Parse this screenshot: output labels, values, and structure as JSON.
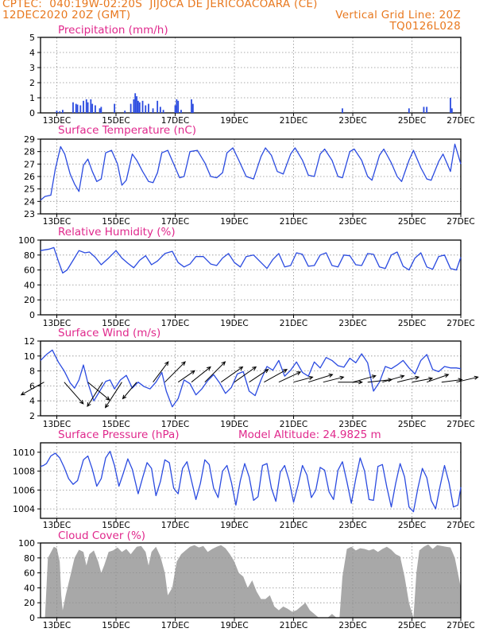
{
  "header": {
    "line1": "CPTEC:  040:19W-02:20S  JIJOCA DE JERICOACOARA (CE)",
    "line2_left": "12DEC2020 20Z (GMT)",
    "line2_right": "Vertical Grid Line: 20Z",
    "line3_right": "TQ0126L028"
  },
  "colors": {
    "header": "#e8781e",
    "title": "#e0288c",
    "series": "#2b4be0",
    "cloud": "#a8a8a8",
    "grid": "#909090",
    "wind_arrow": "#000000"
  },
  "x_ticks": [
    "13DEC",
    "15DEC",
    "17DEC",
    "19DEC",
    "21DEC",
    "23DEC",
    "25DEC",
    "27DEC"
  ],
  "chart_data": [
    {
      "id": "precip",
      "type": "bar",
      "title": "Precipitation (mm/h)",
      "ylim": [
        0,
        5
      ],
      "yticks": [
        "0",
        "1",
        "2",
        "3",
        "4",
        "5"
      ],
      "t_range": [
        0,
        14.25
      ],
      "grid": true,
      "bars": [
        [
          0.55,
          0.15
        ],
        [
          0.65,
          0.1
        ],
        [
          0.75,
          0.2
        ],
        [
          1.1,
          0.7
        ],
        [
          1.2,
          0.6
        ],
        [
          1.25,
          0.55
        ],
        [
          1.35,
          0.5
        ],
        [
          1.45,
          0.8
        ],
        [
          1.55,
          0.9
        ],
        [
          1.6,
          0.7
        ],
        [
          1.7,
          0.9
        ],
        [
          1.75,
          0.6
        ],
        [
          1.85,
          0.5
        ],
        [
          2.0,
          0.3
        ],
        [
          2.05,
          0.4
        ],
        [
          2.5,
          0.6
        ],
        [
          2.85,
          0.15
        ],
        [
          3.05,
          0.6
        ],
        [
          3.15,
          0.9
        ],
        [
          3.2,
          1.3
        ],
        [
          3.25,
          1.1
        ],
        [
          3.3,
          0.8
        ],
        [
          3.35,
          0.7
        ],
        [
          3.45,
          0.8
        ],
        [
          3.55,
          0.5
        ],
        [
          3.65,
          0.6
        ],
        [
          3.8,
          0.3
        ],
        [
          3.95,
          0.8
        ],
        [
          4.05,
          0.4
        ],
        [
          4.15,
          0.2
        ],
        [
          4.55,
          0.5
        ],
        [
          4.6,
          0.9
        ],
        [
          4.65,
          0.8
        ],
        [
          4.75,
          0.2
        ],
        [
          5.1,
          0.9
        ],
        [
          5.15,
          0.6
        ],
        [
          10.2,
          0.3
        ],
        [
          12.45,
          0.3
        ],
        [
          12.95,
          0.4
        ],
        [
          13.05,
          0.4
        ],
        [
          13.85,
          1.0
        ],
        [
          13.9,
          0.3
        ]
      ]
    },
    {
      "id": "temp",
      "type": "line",
      "title": "Surface Temperature (nC)",
      "ylim": [
        23,
        29
      ],
      "yticks": [
        "23",
        "24",
        "25",
        "26",
        "27",
        "28",
        "29"
      ],
      "grid": true,
      "t": [
        0,
        0.15,
        0.35,
        0.5,
        0.68,
        0.82,
        1.0,
        1.15,
        1.3,
        1.45,
        1.6,
        1.75,
        1.9,
        2.05,
        2.2,
        2.4,
        2.6,
        2.75,
        2.9,
        3.1,
        3.25,
        3.45,
        3.65,
        3.8,
        3.95,
        4.1,
        4.3,
        4.5,
        4.7,
        4.85,
        5.05,
        5.3,
        5.55,
        5.75,
        5.95,
        6.15,
        6.3,
        6.5,
        6.7,
        6.95,
        7.2,
        7.45,
        7.6,
        7.8,
        8.0,
        8.2,
        8.45,
        8.6,
        8.85,
        9.05,
        9.25,
        9.45,
        9.6,
        9.85,
        10.05,
        10.2,
        10.45,
        10.6,
        10.85,
        11.05,
        11.2,
        11.45,
        11.6,
        11.85,
        12.05,
        12.2,
        12.45,
        12.6,
        12.85,
        13.05,
        13.2,
        13.45,
        13.6,
        13.85,
        14.0,
        14.2
      ],
      "values": [
        24.1,
        24.4,
        24.5,
        26.6,
        28.4,
        27.8,
        26.2,
        25.4,
        24.8,
        26.9,
        27.4,
        26.4,
        25.6,
        25.8,
        27.9,
        28.1,
        27.0,
        25.3,
        25.7,
        27.8,
        27.3,
        26.4,
        25.6,
        25.5,
        26.3,
        27.9,
        28.1,
        27.0,
        25.9,
        26.0,
        28.0,
        28.1,
        27.1,
        26.0,
        25.9,
        26.3,
        27.9,
        28.3,
        27.3,
        26.0,
        25.8,
        27.6,
        28.3,
        27.7,
        26.4,
        26.2,
        27.8,
        28.3,
        27.3,
        26.1,
        26.0,
        27.8,
        28.2,
        27.3,
        26.0,
        25.9,
        28.0,
        28.2,
        27.3,
        26.0,
        25.7,
        27.7,
        28.2,
        27.1,
        26.0,
        25.6,
        27.3,
        28.1,
        26.7,
        25.8,
        25.7,
        27.2,
        27.8,
        26.4,
        28.6,
        27.0
      ]
    },
    {
      "id": "rh",
      "type": "line",
      "title": "Relative Humidity (%)",
      "ylim": [
        0,
        100
      ],
      "yticks": [
        "0",
        "20",
        "40",
        "60",
        "80",
        "100"
      ],
      "grid": true,
      "t": [
        0,
        0.3,
        0.45,
        0.6,
        0.75,
        0.9,
        1.1,
        1.3,
        1.5,
        1.65,
        1.85,
        2.05,
        2.3,
        2.55,
        2.75,
        2.95,
        3.15,
        3.35,
        3.55,
        3.75,
        3.95,
        4.2,
        4.45,
        4.65,
        4.85,
        5.05,
        5.25,
        5.5,
        5.75,
        5.95,
        6.15,
        6.35,
        6.55,
        6.75,
        6.95,
        7.2,
        7.45,
        7.65,
        7.85,
        8.05,
        8.25,
        8.45,
        8.65,
        8.85,
        9.05,
        9.25,
        9.45,
        9.65,
        9.85,
        10.05,
        10.25,
        10.45,
        10.65,
        10.85,
        11.05,
        11.25,
        11.45,
        11.65,
        11.85,
        12.05,
        12.25,
        12.45,
        12.65,
        12.85,
        13.05,
        13.25,
        13.45,
        13.65,
        13.85,
        14.05,
        14.2
      ],
      "values": [
        86,
        88,
        90,
        72,
        56,
        60,
        73,
        86,
        83,
        84,
        77,
        67,
        76,
        86,
        76,
        69,
        63,
        73,
        79,
        67,
        72,
        82,
        85,
        70,
        64,
        68,
        78,
        78,
        68,
        66,
        76,
        82,
        70,
        64,
        78,
        80,
        70,
        62,
        74,
        82,
        64,
        66,
        83,
        81,
        65,
        66,
        80,
        83,
        66,
        64,
        80,
        79,
        67,
        66,
        82,
        81,
        64,
        62,
        80,
        84,
        65,
        60,
        76,
        83,
        64,
        61,
        78,
        80,
        62,
        60,
        77
      ]
    },
    {
      "id": "wind",
      "type": "line",
      "title": "Surface Wind (m/s)",
      "ylim": [
        2,
        12
      ],
      "yticks": [
        "2",
        "4",
        "6",
        "8",
        "10",
        "12"
      ],
      "grid": true,
      "t": [
        0,
        0.2,
        0.4,
        0.6,
        0.8,
        1.0,
        1.15,
        1.3,
        1.45,
        1.6,
        1.8,
        2.0,
        2.2,
        2.35,
        2.5,
        2.7,
        2.9,
        3.1,
        3.3,
        3.5,
        3.7,
        3.9,
        4.1,
        4.25,
        4.45,
        4.65,
        4.85,
        5.05,
        5.25,
        5.45,
        5.65,
        5.85,
        6.05,
        6.25,
        6.45,
        6.65,
        6.85,
        7.05,
        7.25,
        7.45,
        7.65,
        7.85,
        8.05,
        8.25,
        8.45,
        8.65,
        8.85,
        9.05,
        9.25,
        9.45,
        9.65,
        9.85,
        10.05,
        10.25,
        10.45,
        10.65,
        10.85,
        11.05,
        11.25,
        11.45,
        11.65,
        11.85,
        12.05,
        12.25,
        12.45,
        12.65,
        12.85,
        13.05,
        13.25,
        13.45,
        13.65,
        13.85,
        14.05,
        14.2
      ],
      "values": [
        9.4,
        10.2,
        10.8,
        9.2,
        8.0,
        6.4,
        5.7,
        6.8,
        8.8,
        6.4,
        4.0,
        5.3,
        6.6,
        6.8,
        5.6,
        6.8,
        7.4,
        5.7,
        6.5,
        5.9,
        5.6,
        6.5,
        7.8,
        5.3,
        3.2,
        4.3,
        6.8,
        6.3,
        4.8,
        5.6,
        6.7,
        7.5,
        6.4,
        5.0,
        5.8,
        7.6,
        7.9,
        5.3,
        4.7,
        6.8,
        8.6,
        8.1,
        9.4,
        7.3,
        8.1,
        9.2,
        7.8,
        7.3,
        9.2,
        8.4,
        9.8,
        9.4,
        8.7,
        8.5,
        9.7,
        9.1,
        10.3,
        9.1,
        5.3,
        6.5,
        8.6,
        8.3,
        8.8,
        9.4,
        8.4,
        7.6,
        9.4,
        10.2,
        8.2,
        7.9,
        8.6,
        8.4,
        8.4,
        8.3
      ],
      "vectors": [
        [
          0.12,
          -1.8,
          1.0
        ],
        [
          0.8,
          1.5,
          1.7
        ],
        [
          1.6,
          1.7,
          1.4
        ],
        [
          2.1,
          -1.2,
          1.9
        ],
        [
          2.75,
          -1.3,
          2.0
        ],
        [
          3.25,
          -1.1,
          1.3
        ],
        [
          3.8,
          1.2,
          -1.6
        ],
        [
          4.2,
          1.6,
          -1.6
        ],
        [
          4.65,
          1.3,
          -0.9
        ],
        [
          5.1,
          1.5,
          -1.2
        ],
        [
          5.55,
          1.6,
          -1.6
        ],
        [
          6.1,
          1.7,
          -1.2
        ],
        [
          6.55,
          1.7,
          -1.2
        ],
        [
          7.05,
          1.5,
          -1.0
        ],
        [
          7.55,
          1.8,
          -1.0
        ],
        [
          8.05,
          1.7,
          -0.8
        ],
        [
          8.55,
          1.5,
          -0.4
        ],
        [
          9.05,
          1.9,
          -0.6
        ],
        [
          9.55,
          1.6,
          -0.4
        ],
        [
          10.05,
          1.9,
          0.0
        ],
        [
          10.55,
          1.8,
          -0.5
        ],
        [
          11.05,
          1.9,
          -0.2
        ],
        [
          11.55,
          1.7,
          -0.5
        ],
        [
          12.05,
          1.7,
          -0.4
        ],
        [
          12.55,
          1.6,
          -0.3
        ],
        [
          13.05,
          1.7,
          -0.6
        ],
        [
          13.55,
          1.6,
          -0.2
        ],
        [
          14.05,
          1.7,
          -0.4
        ]
      ]
    },
    {
      "id": "pres",
      "type": "line",
      "title": "Surface Pressure (hPa)",
      "annotation": "Model Altitude: 24.9825 m",
      "ylim": [
        1003,
        1011
      ],
      "yticks": [
        "1004",
        "1006",
        "1008",
        "1010"
      ],
      "grid": true,
      "t": [
        0,
        0.1,
        0.2,
        0.35,
        0.5,
        0.65,
        0.8,
        0.95,
        1.1,
        1.25,
        1.45,
        1.6,
        1.75,
        1.9,
        2.05,
        2.2,
        2.35,
        2.5,
        2.65,
        2.8,
        2.95,
        3.1,
        3.3,
        3.45,
        3.6,
        3.75,
        3.9,
        4.05,
        4.2,
        4.35,
        4.5,
        4.65,
        4.8,
        4.95,
        5.1,
        5.25,
        5.4,
        5.55,
        5.7,
        5.85,
        6.0,
        6.15,
        6.3,
        6.45,
        6.6,
        6.75,
        6.9,
        7.05,
        7.2,
        7.35,
        7.5,
        7.65,
        7.8,
        7.95,
        8.1,
        8.25,
        8.4,
        8.55,
        8.7,
        8.85,
        9.0,
        9.15,
        9.3,
        9.45,
        9.6,
        9.75,
        9.9,
        10.05,
        10.2,
        10.35,
        10.5,
        10.65,
        10.8,
        10.95,
        11.1,
        11.25,
        11.4,
        11.55,
        11.7,
        11.85,
        12.0,
        12.15,
        12.3,
        12.45,
        12.6,
        12.75,
        12.9,
        13.05,
        13.2,
        13.35,
        13.5,
        13.65,
        13.8,
        13.95,
        14.1,
        14.2
      ],
      "values": [
        1008.5,
        1008.6,
        1008.8,
        1009.6,
        1009.9,
        1009.4,
        1008.4,
        1007.2,
        1006.6,
        1007.0,
        1009.2,
        1009.6,
        1008.2,
        1006.4,
        1007.2,
        1009.4,
        1010.1,
        1008.6,
        1006.4,
        1007.8,
        1009.3,
        1008.2,
        1005.6,
        1007.3,
        1008.9,
        1008.3,
        1005.4,
        1006.9,
        1009.2,
        1008.9,
        1006.2,
        1005.6,
        1008.3,
        1009.0,
        1007.0,
        1005.0,
        1006.7,
        1009.2,
        1008.7,
        1006.2,
        1005.2,
        1008.0,
        1008.6,
        1006.8,
        1004.4,
        1007.0,
        1008.8,
        1007.4,
        1004.9,
        1005.3,
        1008.6,
        1008.8,
        1006.2,
        1004.8,
        1007.9,
        1008.6,
        1007.0,
        1004.7,
        1006.5,
        1008.6,
        1007.6,
        1005.2,
        1006.0,
        1008.4,
        1008.1,
        1005.8,
        1005.0,
        1008.1,
        1009.0,
        1006.9,
        1004.6,
        1007.2,
        1009.4,
        1008.0,
        1005.0,
        1004.9,
        1008.5,
        1008.7,
        1006.3,
        1004.2,
        1006.7,
        1008.8,
        1007.4,
        1004.2,
        1003.7,
        1006.2,
        1008.3,
        1007.3,
        1004.9,
        1004.0,
        1006.4,
        1008.6,
        1006.8,
        1004.2,
        1004.4,
        1006.3
      ]
    },
    {
      "id": "cloud",
      "type": "area",
      "title": "Cloud Cover (%)",
      "ylim": [
        0,
        100
      ],
      "yticks": [
        "0",
        "20",
        "40",
        "60",
        "80",
        "100"
      ],
      "grid": true,
      "t": [
        0,
        0.15,
        0.25,
        0.45,
        0.55,
        0.65,
        0.7,
        0.75,
        0.85,
        1.0,
        1.15,
        1.3,
        1.45,
        1.55,
        1.65,
        1.8,
        1.95,
        2.05,
        2.15,
        2.3,
        2.45,
        2.6,
        2.75,
        2.9,
        3.05,
        3.15,
        3.25,
        3.4,
        3.55,
        3.65,
        3.75,
        3.9,
        4.05,
        4.2,
        4.3,
        4.45,
        4.6,
        4.75,
        4.9,
        5.05,
        5.2,
        5.35,
        5.5,
        5.65,
        5.8,
        5.95,
        6.1,
        6.25,
        6.4,
        6.55,
        6.7,
        6.85,
        7.0,
        7.15,
        7.3,
        7.45,
        7.6,
        7.75,
        7.9,
        8.05,
        8.2,
        8.35,
        8.5,
        8.65,
        8.8,
        8.95,
        9.1,
        9.25,
        9.4,
        9.55,
        9.7,
        9.85,
        10.0,
        10.1,
        10.2,
        10.35,
        10.5,
        10.65,
        10.8,
        10.95,
        11.1,
        11.25,
        11.4,
        11.55,
        11.7,
        11.85,
        12.0,
        12.15,
        12.3,
        12.45,
        12.6,
        12.7,
        12.8,
        12.95,
        13.1,
        13.25,
        13.4,
        13.55,
        13.7,
        13.85,
        14.0,
        14.1,
        14.2
      ],
      "values": [
        0,
        0,
        80,
        95,
        93,
        75,
        30,
        10,
        30,
        55,
        80,
        91,
        88,
        70,
        85,
        90,
        75,
        60,
        70,
        88,
        90,
        94,
        88,
        92,
        85,
        90,
        95,
        96,
        88,
        70,
        88,
        95,
        82,
        60,
        30,
        40,
        75,
        85,
        90,
        95,
        97,
        94,
        96,
        88,
        92,
        95,
        97,
        93,
        85,
        75,
        60,
        55,
        40,
        50,
        35,
        25,
        25,
        30,
        15,
        10,
        15,
        12,
        8,
        10,
        15,
        20,
        10,
        5,
        0,
        0,
        0,
        5,
        0,
        0,
        55,
        92,
        95,
        90,
        93,
        92,
        90,
        92,
        88,
        92,
        95,
        91,
        85,
        82,
        55,
        20,
        0,
        60,
        90,
        95,
        98,
        92,
        97,
        96,
        95,
        94,
        80,
        60,
        40
      ]
    }
  ]
}
